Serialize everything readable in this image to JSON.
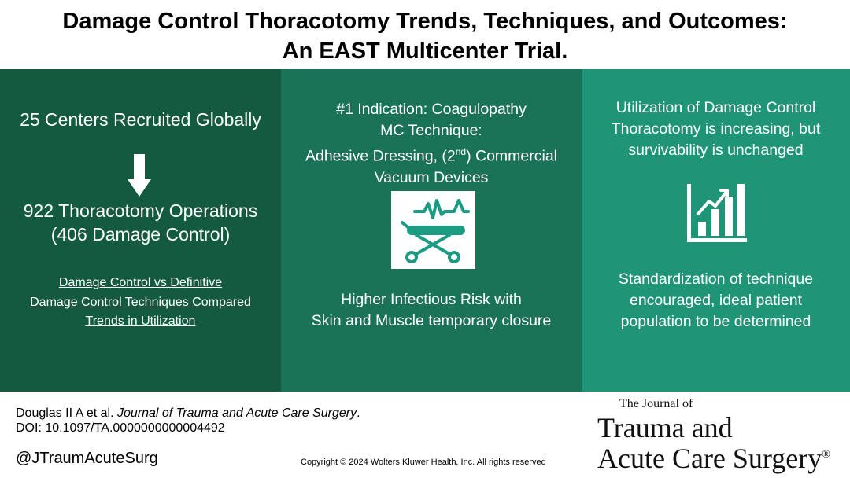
{
  "title": {
    "line1": "Damage Control Thoracotomy Trends, Techniques, and Outcomes:",
    "line2": "An EAST Multicenter Trial."
  },
  "panel1": {
    "centers": "25 Centers Recruited Globally",
    "operations_line1": "922 Thoracotomy Operations",
    "operations_line2": "(406 Damage Control)",
    "links": [
      "Damage Control vs Definitive",
      "Damage Control Techniques Compared",
      "Trends in Utilization"
    ]
  },
  "panel2": {
    "indication": "#1 Indication: Coagulopathy",
    "technique_label": "MC Technique:",
    "technique_line1_a": "Adhesive Dressing, (2",
    "technique_line1_sup": "nd",
    "technique_line1_b": ") Commercial",
    "technique_line2": "Vacuum Devices",
    "infection_line1": "Higher Infectious Risk with",
    "infection_line2": "Skin and Muscle temporary closure"
  },
  "panel3": {
    "utilization_line1": "Utilization of Damage Control",
    "utilization_line2": "Thoracotomy is increasing, but",
    "utilization_line3": "survivability is unchanged",
    "standard_line1": "Standardization of technique",
    "standard_line2": "encouraged, ideal patient",
    "standard_line3": "population to be determined"
  },
  "footer": {
    "authors": "Douglas II A et al. ",
    "journal_name": "Journal of Trauma and Acute Care Surgery",
    "journal_period": ".",
    "doi": "DOI: 10.1097/TA.0000000000004492",
    "handle": "@JTraumAcuteSurg",
    "copyright": "Copyright © 2024  Wolters Kluwer Health, Inc. All rights reserved"
  },
  "journal_logo": {
    "small": "The Journal of",
    "line1": "Trauma and",
    "line2": "Acute Care Surgery",
    "registered": "®"
  },
  "colors": {
    "panel1": "#145a40",
    "panel2": "#1a7357",
    "panel3": "#1f9476",
    "icon_teal": "#1a9b82"
  },
  "icons": [
    "down-arrow-icon",
    "stretcher-heartbeat-icon",
    "bar-chart-trend-icon"
  ]
}
